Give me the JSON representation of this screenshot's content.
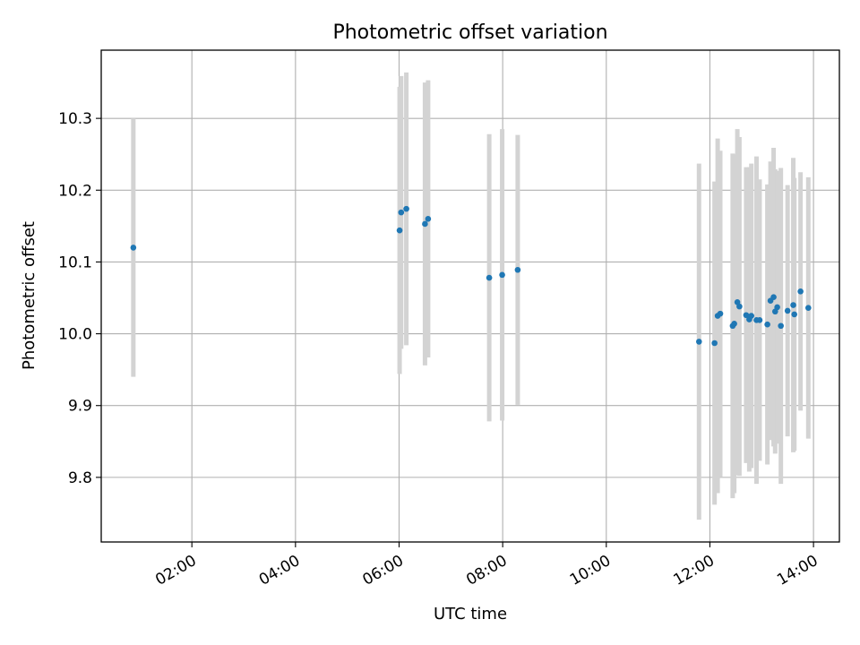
{
  "chart_data": {
    "type": "scatter",
    "title": "Photometric offset variation",
    "xlabel": "UTC time",
    "ylabel": "Photometric offset",
    "x_unit": "UTC hours",
    "xlim": [
      0.25,
      14.5
    ],
    "ylim": [
      9.71,
      10.395
    ],
    "x_ticks": [
      {
        "value": 2,
        "label": "02:00"
      },
      {
        "value": 4,
        "label": "04:00"
      },
      {
        "value": 6,
        "label": "06:00"
      },
      {
        "value": 8,
        "label": "08:00"
      },
      {
        "value": 10,
        "label": "10:00"
      },
      {
        "value": 12,
        "label": "12:00"
      },
      {
        "value": 14,
        "label": "14:00"
      }
    ],
    "y_ticks": [
      {
        "value": 9.8,
        "label": "9.8"
      },
      {
        "value": 9.9,
        "label": "9.9"
      },
      {
        "value": 10.0,
        "label": "10.0"
      },
      {
        "value": 10.1,
        "label": "10.1"
      },
      {
        "value": 10.2,
        "label": "10.2"
      },
      {
        "value": 10.3,
        "label": "10.3"
      }
    ],
    "grid": true,
    "colors": {
      "point": "#1f77b4",
      "errorbar": "#d3d3d3",
      "grid": "#b0b0b0"
    },
    "points": [
      {
        "time": "00:52",
        "x": 0.87,
        "y": 10.12,
        "err": 0.18
      },
      {
        "time": "06:01",
        "x": 6.01,
        "y": 10.144,
        "err": 0.2
      },
      {
        "time": "06:02",
        "x": 6.04,
        "y": 10.169,
        "err": 0.19
      },
      {
        "time": "06:08",
        "x": 6.14,
        "y": 10.174,
        "err": 0.19
      },
      {
        "time": "06:30",
        "x": 6.5,
        "y": 10.153,
        "err": 0.197
      },
      {
        "time": "06:33",
        "x": 6.56,
        "y": 10.16,
        "err": 0.193
      },
      {
        "time": "07:44",
        "x": 7.74,
        "y": 10.078,
        "err": 0.2
      },
      {
        "time": "07:59",
        "x": 7.99,
        "y": 10.082,
        "err": 0.203
      },
      {
        "time": "08:17",
        "x": 8.29,
        "y": 10.089,
        "err": 0.188
      },
      {
        "time": "11:47",
        "x": 11.79,
        "y": 9.989,
        "err": 0.248
      },
      {
        "time": "12:05",
        "x": 12.09,
        "y": 9.987,
        "err": 0.225
      },
      {
        "time": "12:09",
        "x": 12.15,
        "y": 10.025,
        "err": 0.247
      },
      {
        "time": "12:12",
        "x": 12.2,
        "y": 10.028,
        "err": 0.227
      },
      {
        "time": "12:26",
        "x": 12.44,
        "y": 10.011,
        "err": 0.24
      },
      {
        "time": "12:28",
        "x": 12.47,
        "y": 10.014,
        "err": 0.236
      },
      {
        "time": "12:32",
        "x": 12.53,
        "y": 10.044,
        "err": 0.241
      },
      {
        "time": "12:34",
        "x": 12.57,
        "y": 10.038,
        "err": 0.236
      },
      {
        "time": "12:42",
        "x": 12.7,
        "y": 10.026,
        "err": 0.206
      },
      {
        "time": "12:46",
        "x": 12.76,
        "y": 10.02,
        "err": 0.212
      },
      {
        "time": "12:48",
        "x": 12.8,
        "y": 10.025,
        "err": 0.212
      },
      {
        "time": "12:54",
        "x": 12.9,
        "y": 10.019,
        "err": 0.228
      },
      {
        "time": "12:57",
        "x": 12.96,
        "y": 10.019,
        "err": 0.196
      },
      {
        "time": "13:07",
        "x": 13.11,
        "y": 10.013,
        "err": 0.195
      },
      {
        "time": "13:10",
        "x": 13.17,
        "y": 10.046,
        "err": 0.194
      },
      {
        "time": "13:14",
        "x": 13.23,
        "y": 10.051,
        "err": 0.208
      },
      {
        "time": "13:15",
        "x": 13.26,
        "y": 10.031,
        "err": 0.198
      },
      {
        "time": "13:18",
        "x": 13.3,
        "y": 10.037,
        "err": 0.19
      },
      {
        "time": "13:22",
        "x": 13.37,
        "y": 10.011,
        "err": 0.22
      },
      {
        "time": "13:30",
        "x": 13.5,
        "y": 10.032,
        "err": 0.175
      },
      {
        "time": "13:36",
        "x": 13.61,
        "y": 10.04,
        "err": 0.205
      },
      {
        "time": "13:38",
        "x": 13.63,
        "y": 10.027,
        "err": 0.19
      },
      {
        "time": "13:45",
        "x": 13.75,
        "y": 10.059,
        "err": 0.166
      },
      {
        "time": "13:54",
        "x": 13.9,
        "y": 10.036,
        "err": 0.182
      }
    ]
  }
}
